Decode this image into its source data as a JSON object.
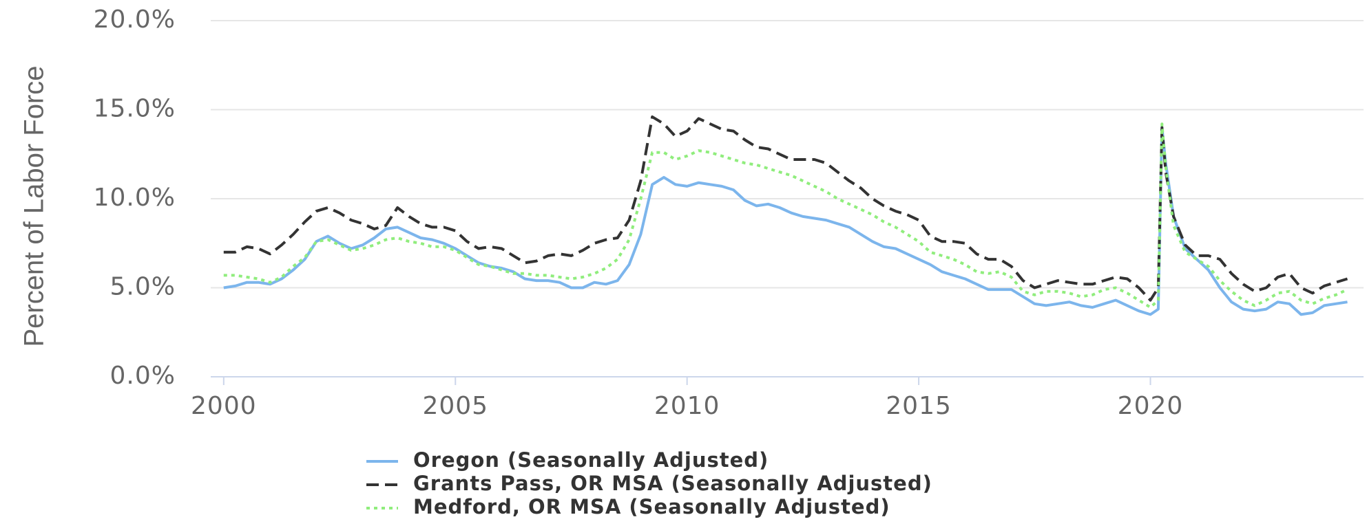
{
  "chart_data": {
    "type": "line",
    "y_axis_label": "Percent of Labor Force",
    "x": [
      2000,
      2000.25,
      2000.5,
      2000.75,
      2001,
      2001.25,
      2001.5,
      2001.75,
      2002,
      2002.25,
      2002.5,
      2002.75,
      2003,
      2003.25,
      2003.5,
      2003.75,
      2004,
      2004.25,
      2004.5,
      2004.75,
      2005,
      2005.25,
      2005.5,
      2005.75,
      2006,
      2006.25,
      2006.5,
      2006.75,
      2007,
      2007.25,
      2007.5,
      2007.75,
      2008,
      2008.25,
      2008.5,
      2008.75,
      2009,
      2009.25,
      2009.5,
      2009.75,
      2010,
      2010.25,
      2010.5,
      2010.75,
      2011,
      2011.25,
      2011.5,
      2011.75,
      2012,
      2012.25,
      2012.5,
      2012.75,
      2013,
      2013.25,
      2013.5,
      2013.75,
      2014,
      2014.25,
      2014.5,
      2014.75,
      2015,
      2015.25,
      2015.5,
      2015.75,
      2016,
      2016.25,
      2016.5,
      2016.75,
      2017,
      2017.25,
      2017.5,
      2017.75,
      2018,
      2018.25,
      2018.5,
      2018.75,
      2019,
      2019.25,
      2019.5,
      2019.75,
      2020,
      2020.17,
      2020.25,
      2020.33,
      2020.5,
      2020.75,
      2021,
      2021.25,
      2021.5,
      2021.75,
      2022,
      2022.25,
      2022.5,
      2022.75,
      2023,
      2023.25,
      2023.5,
      2023.75,
      2024,
      2024.25
    ],
    "series": [
      {
        "name": "Oregon (Seasonally Adjusted)",
        "color": "#7cb5ec",
        "style": "solid",
        "values": [
          5.0,
          5.1,
          5.3,
          5.3,
          5.2,
          5.5,
          6.0,
          6.6,
          7.6,
          7.9,
          7.5,
          7.2,
          7.4,
          7.8,
          8.3,
          8.4,
          8.1,
          7.8,
          7.7,
          7.5,
          7.2,
          6.8,
          6.4,
          6.2,
          6.1,
          5.9,
          5.5,
          5.4,
          5.4,
          5.3,
          5.0,
          5.0,
          5.3,
          5.2,
          5.4,
          6.3,
          8.0,
          10.8,
          11.2,
          10.8,
          10.7,
          10.9,
          10.8,
          10.7,
          10.5,
          9.9,
          9.6,
          9.7,
          9.5,
          9.2,
          9.0,
          8.9,
          8.8,
          8.6,
          8.4,
          8.0,
          7.6,
          7.3,
          7.2,
          6.9,
          6.6,
          6.3,
          5.9,
          5.7,
          5.5,
          5.2,
          4.9,
          4.9,
          4.9,
          4.5,
          4.1,
          4.0,
          4.1,
          4.2,
          4.0,
          3.9,
          4.1,
          4.3,
          4.0,
          3.7,
          3.5,
          3.8,
          14.0,
          12.0,
          9.0,
          7.2,
          6.6,
          6.0,
          5.0,
          4.2,
          3.8,
          3.7,
          3.8,
          4.2,
          4.1,
          3.5,
          3.6,
          4.0,
          4.1,
          4.2
        ]
      },
      {
        "name": "Grants Pass, OR MSA (Seasonally Adjusted)",
        "color": "#333333",
        "style": "dashed",
        "values": [
          7.0,
          7.0,
          7.3,
          7.2,
          6.9,
          7.4,
          8.0,
          8.7,
          9.3,
          9.5,
          9.2,
          8.8,
          8.6,
          8.3,
          8.5,
          9.5,
          9.0,
          8.6,
          8.4,
          8.4,
          8.2,
          7.6,
          7.2,
          7.3,
          7.2,
          6.8,
          6.4,
          6.5,
          6.8,
          6.9,
          6.8,
          7.1,
          7.5,
          7.7,
          7.8,
          8.8,
          11.0,
          14.6,
          14.2,
          13.5,
          13.8,
          14.5,
          14.2,
          13.9,
          13.8,
          13.3,
          12.9,
          12.8,
          12.5,
          12.2,
          12.2,
          12.2,
          12.0,
          11.5,
          11.0,
          10.6,
          10.0,
          9.6,
          9.3,
          9.1,
          8.8,
          7.9,
          7.6,
          7.6,
          7.5,
          6.9,
          6.6,
          6.6,
          6.2,
          5.4,
          5.0,
          5.2,
          5.4,
          5.3,
          5.2,
          5.2,
          5.4,
          5.6,
          5.5,
          5.0,
          4.3,
          5.0,
          14.0,
          11.5,
          9.0,
          7.4,
          6.8,
          6.8,
          6.6,
          5.8,
          5.2,
          4.8,
          5.0,
          5.6,
          5.8,
          5.0,
          4.7,
          5.1,
          5.3,
          5.5
        ]
      },
      {
        "name": "Medford, OR MSA (Seasonally Adjusted)",
        "color": "#90ed7d",
        "style": "dotted",
        "values": [
          5.7,
          5.7,
          5.6,
          5.5,
          5.3,
          5.6,
          6.2,
          6.7,
          7.6,
          7.7,
          7.4,
          7.1,
          7.2,
          7.4,
          7.7,
          7.8,
          7.6,
          7.5,
          7.3,
          7.3,
          7.1,
          6.7,
          6.3,
          6.2,
          6.0,
          5.8,
          5.8,
          5.7,
          5.7,
          5.6,
          5.5,
          5.6,
          5.8,
          6.1,
          6.6,
          7.7,
          10.0,
          12.6,
          12.6,
          12.2,
          12.4,
          12.7,
          12.6,
          12.4,
          12.2,
          12.0,
          11.9,
          11.7,
          11.5,
          11.3,
          11.0,
          10.7,
          10.4,
          10.0,
          9.7,
          9.4,
          9.1,
          8.7,
          8.4,
          8.0,
          7.6,
          7.0,
          6.8,
          6.6,
          6.3,
          5.9,
          5.8,
          5.9,
          5.6,
          4.8,
          4.6,
          4.8,
          4.8,
          4.7,
          4.5,
          4.6,
          4.9,
          5.0,
          4.7,
          4.3,
          3.9,
          4.3,
          14.2,
          11.8,
          8.5,
          7.0,
          6.6,
          6.2,
          5.4,
          4.8,
          4.3,
          4.0,
          4.3,
          4.7,
          4.8,
          4.3,
          4.1,
          4.4,
          4.6,
          4.9
        ]
      }
    ],
    "xlim": [
      1999.72,
      2024.6
    ],
    "ylim": [
      0,
      20
    ],
    "xticks": [
      2000,
      2005,
      2010,
      2015,
      2020
    ],
    "yticks": [
      {
        "value": 0,
        "label": "0.0%"
      },
      {
        "value": 5,
        "label": "5.0%"
      },
      {
        "value": 10,
        "label": "10.0%"
      },
      {
        "value": 15,
        "label": "15.0%"
      },
      {
        "value": 20,
        "label": "20.0%"
      }
    ],
    "grid": true,
    "legend": "bottom"
  }
}
